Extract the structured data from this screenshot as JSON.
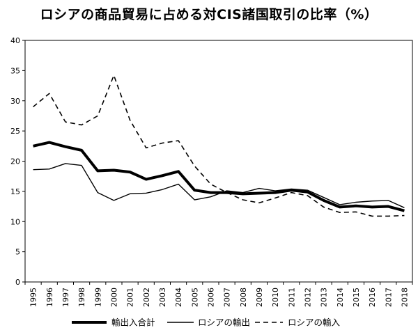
{
  "chart_data": {
    "type": "line",
    "title": "ロシアの商品貿易に占める対CIS諸国取引の比率（%）",
    "xlabel": "",
    "ylabel": "",
    "ylim": [
      0,
      40
    ],
    "yticks": [
      0,
      5,
      10,
      15,
      20,
      25,
      30,
      35,
      40
    ],
    "categories": [
      "1995",
      "1996",
      "1997",
      "1998",
      "1999",
      "2000",
      "2001",
      "2002",
      "2003",
      "2004",
      "2005",
      "2006",
      "2007",
      "2008",
      "2009",
      "2010",
      "2011",
      "2012",
      "2013",
      "2014",
      "2015",
      "2016",
      "2017",
      "2018"
    ],
    "series": [
      {
        "name": "輸出入合計",
        "style": "thick",
        "values": [
          22.5,
          23.1,
          22.4,
          21.8,
          18.4,
          18.5,
          18.2,
          17.0,
          17.6,
          18.3,
          15.2,
          14.8,
          14.8,
          14.6,
          14.7,
          14.8,
          15.2,
          14.9,
          13.5,
          12.4,
          12.6,
          12.4,
          12.5,
          11.8
        ]
      },
      {
        "name": "ロシアの輸出",
        "style": "thin",
        "values": [
          18.6,
          18.7,
          19.6,
          19.3,
          14.8,
          13.5,
          14.6,
          14.7,
          15.3,
          16.2,
          13.6,
          14.1,
          15.1,
          14.8,
          15.5,
          15.1,
          15.4,
          15.2,
          14.0,
          12.8,
          13.2,
          13.4,
          13.5,
          12.3
        ]
      },
      {
        "name": "ロシアの輸入",
        "style": "dashed",
        "values": [
          29.0,
          31.2,
          26.5,
          26.0,
          27.5,
          34.2,
          26.8,
          22.2,
          23.0,
          23.4,
          19.2,
          16.2,
          14.8,
          13.6,
          13.1,
          13.9,
          14.8,
          14.3,
          12.4,
          11.5,
          11.6,
          10.9,
          10.9,
          11.0
        ]
      }
    ],
    "legend_position": "bottom",
    "grid": false
  }
}
